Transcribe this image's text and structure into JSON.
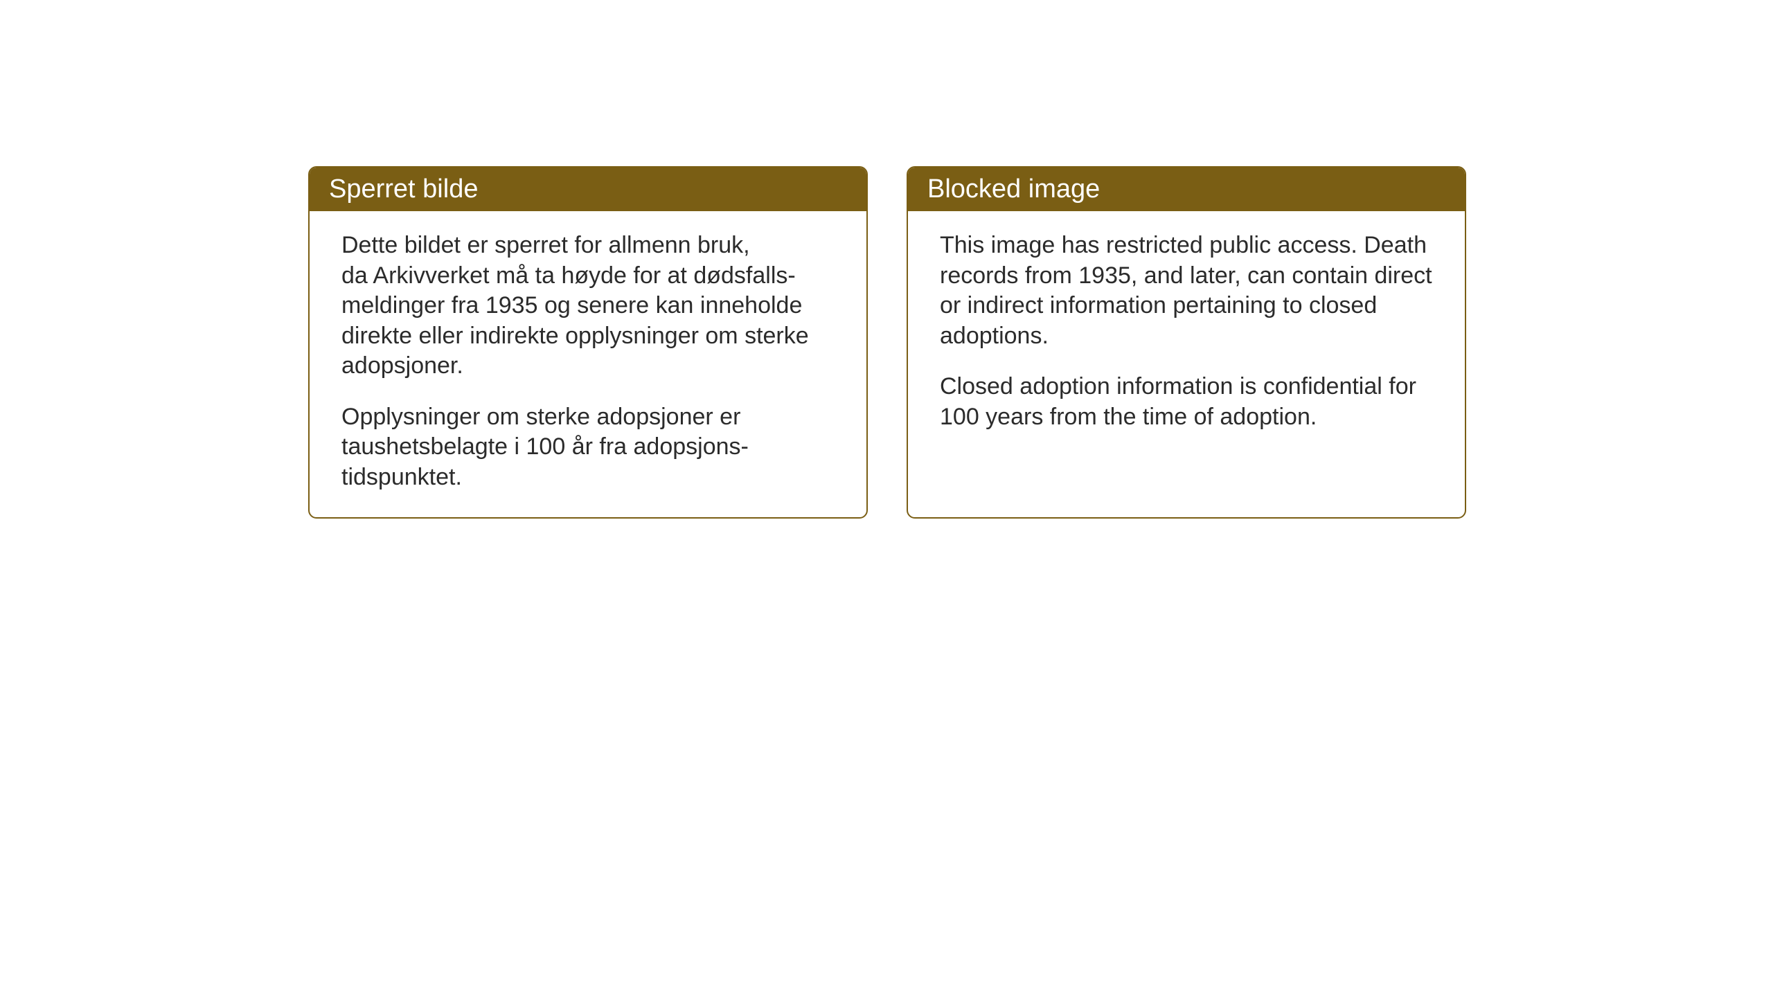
{
  "layout": {
    "background_color": "#ffffff",
    "card_border_color": "#7a5e14",
    "header_bg_color": "#7a5e14",
    "header_text_color": "#ffffff",
    "body_text_color": "#2b2b2b",
    "card_border_radius": 12,
    "header_fontsize": 38,
    "body_fontsize": 34
  },
  "cards": {
    "norwegian": {
      "title": "Sperret bilde",
      "paragraph1": "Dette bildet er sperret for allmenn bruk,\nda Arkivverket må ta høyde for at dødsfalls-\nmeldinger fra 1935 og senere kan inneholde direkte eller indirekte opplysninger om sterke adopsjoner.",
      "paragraph2": "Opplysninger om sterke adopsjoner er taushetsbelagte i 100 år fra adopsjons-\ntidspunktet."
    },
    "english": {
      "title": "Blocked image",
      "paragraph1": "This image has restricted public access. Death records from 1935, and later, can contain direct or indirect information pertaining to closed adoptions.",
      "paragraph2": "Closed adoption information is confidential for 100 years from the time of adoption."
    }
  }
}
